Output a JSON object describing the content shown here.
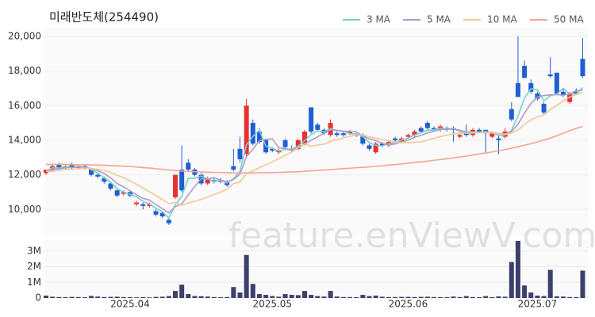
{
  "chart_data": {
    "type": "candlestick",
    "title": "미래반도체(254490)",
    "watermark": "feature.enViewV.com",
    "categories": [
      null,
      null,
      null,
      null,
      null,
      null,
      null,
      null,
      null,
      null,
      null,
      null,
      null,
      "2025.04",
      null,
      null,
      null,
      null,
      null,
      null,
      null,
      null,
      null,
      null,
      null,
      null,
      null,
      null,
      null,
      null,
      null,
      null,
      null,
      null,
      null,
      "2025.05",
      null,
      null,
      null,
      null,
      null,
      null,
      null,
      null,
      null,
      null,
      null,
      null,
      null,
      null,
      null,
      null,
      null,
      null,
      null,
      null,
      "2025.06",
      null,
      null,
      null,
      null,
      null,
      null,
      null,
      null,
      null,
      null,
      null,
      null,
      null,
      null,
      null,
      null,
      null,
      null,
      null,
      "2025.07",
      null,
      null,
      null,
      null,
      null,
      null,
      null
    ],
    "ohlc": [
      [
        12100,
        12300,
        12000,
        12300
      ],
      [
        12300,
        12600,
        12200,
        12500
      ],
      [
        12600,
        12700,
        12300,
        12400
      ],
      [
        12400,
        12600,
        12300,
        12500
      ],
      [
        12600,
        12700,
        12300,
        12400
      ],
      [
        12400,
        12600,
        12300,
        12500
      ],
      [
        12500,
        12600,
        12300,
        12400
      ],
      [
        12300,
        12400,
        11900,
        12000
      ],
      [
        12000,
        12100,
        11800,
        11900
      ],
      [
        11800,
        11900,
        11500,
        11600
      ],
      [
        11500,
        11600,
        11100,
        11200
      ],
      [
        11100,
        11200,
        10700,
        10800
      ],
      [
        10900,
        11100,
        10800,
        11000
      ],
      [
        11000,
        11100,
        10700,
        10800
      ],
      [
        10300,
        10500,
        10200,
        10400
      ],
      [
        10300,
        10400,
        10000,
        10200
      ],
      [
        10200,
        10400,
        10100,
        10300
      ],
      [
        9900,
        10000,
        9600,
        9700
      ],
      [
        9800,
        9900,
        9500,
        9600
      ],
      [
        9400,
        9500,
        9100,
        9200
      ],
      [
        10700,
        12000,
        10600,
        12000
      ],
      [
        12300,
        13700,
        11000,
        11100
      ],
      [
        12700,
        12900,
        12200,
        12300
      ],
      [
        12300,
        12400,
        11900,
        12000
      ],
      [
        12000,
        12100,
        11400,
        11500
      ],
      [
        11500,
        11900,
        11400,
        11800
      ],
      [
        11700,
        11800,
        11500,
        11600
      ],
      [
        11700,
        11800,
        11500,
        11600
      ],
      [
        11600,
        11700,
        11300,
        11400
      ],
      [
        12500,
        13500,
        12200,
        12300
      ],
      [
        13500,
        14200,
        12700,
        12900
      ],
      [
        13200,
        16400,
        13000,
        16000
      ],
      [
        15000,
        15200,
        13700,
        13800
      ],
      [
        14500,
        14700,
        13800,
        13900
      ],
      [
        14000,
        14100,
        13200,
        13300
      ],
      [
        13500,
        13600,
        13300,
        13400
      ],
      [
        13300,
        13500,
        13200,
        13400
      ],
      [
        14000,
        14100,
        13500,
        13600
      ],
      [
        13500,
        13700,
        13300,
        13400
      ],
      [
        13500,
        14100,
        13400,
        14000
      ],
      [
        13800,
        14600,
        13700,
        14500
      ],
      [
        15900,
        15900,
        14400,
        14500
      ],
      [
        14900,
        15000,
        14500,
        14600
      ],
      [
        14600,
        14700,
        14300,
        14400
      ],
      [
        14300,
        15200,
        14200,
        15000
      ],
      [
        14400,
        14500,
        14200,
        14300
      ],
      [
        14400,
        14500,
        14200,
        14300
      ],
      [
        14400,
        14600,
        14300,
        14500
      ],
      [
        14300,
        14400,
        14200,
        14300
      ],
      [
        14300,
        14400,
        13700,
        13800
      ],
      [
        13700,
        13800,
        13400,
        13500
      ],
      [
        13300,
        13900,
        13200,
        13800
      ],
      [
        13800,
        13900,
        13600,
        13700
      ],
      [
        13700,
        14000,
        13600,
        13900
      ],
      [
        14100,
        14200,
        13900,
        14000
      ],
      [
        13900,
        14200,
        13800,
        14100
      ],
      [
        14200,
        14400,
        14100,
        14300
      ],
      [
        14300,
        14600,
        14200,
        14500
      ],
      [
        14700,
        14800,
        14400,
        14500
      ],
      [
        15000,
        15100,
        14600,
        14700
      ],
      [
        14700,
        14800,
        14500,
        14600
      ],
      [
        14600,
        14900,
        14500,
        14800
      ],
      [
        14700,
        14800,
        14500,
        14600
      ],
      [
        14700,
        14800,
        13900,
        14600
      ],
      [
        14200,
        14400,
        14100,
        14300
      ],
      [
        14400,
        14900,
        14200,
        14300
      ],
      [
        14300,
        14700,
        14200,
        14600
      ],
      [
        14600,
        14700,
        14400,
        14500
      ],
      [
        14600,
        14600,
        13300,
        14400
      ],
      [
        14200,
        14500,
        14100,
        14400
      ],
      [
        14100,
        14300,
        13200,
        14000
      ],
      [
        14200,
        14700,
        14100,
        14500
      ],
      [
        15800,
        16200,
        15100,
        15200
      ],
      [
        17300,
        20000,
        16500,
        16500
      ],
      [
        18300,
        18600,
        17600,
        17600
      ],
      [
        17300,
        17500,
        16700,
        16800
      ],
      [
        16700,
        16800,
        16300,
        16400
      ],
      [
        16100,
        16200,
        15500,
        15600
      ],
      [
        17800,
        18800,
        17600,
        17700
      ],
      [
        17900,
        17900,
        16600,
        16700
      ],
      [
        16800,
        17000,
        16500,
        16600
      ],
      [
        16200,
        16800,
        16100,
        16700
      ],
      [
        16800,
        17000,
        16600,
        16700
      ],
      [
        18700,
        19900,
        17600,
        17700
      ]
    ],
    "up_color": "#e8312f",
    "down_color": "#1f5fd1",
    "series": [
      {
        "name": "3 MA",
        "color": "#74cfcf",
        "values": [
          12200,
          12400,
          12400,
          12470,
          12430,
          12470,
          12430,
          12300,
          12100,
          11830,
          11570,
          11200,
          11000,
          10870,
          10730,
          10470,
          10300,
          10070,
          9870,
          9500,
          10270,
          10770,
          11800,
          11800,
          11930,
          11770,
          11630,
          11670,
          11530,
          11770,
          12200,
          13730,
          14230,
          14570,
          13670,
          13530,
          13370,
          13470,
          13470,
          13670,
          13970,
          14330,
          14530,
          14500,
          14670,
          14570,
          14530,
          14370,
          14370,
          14200,
          13870,
          13700,
          13670,
          13800,
          13870,
          14000,
          14130,
          14300,
          14430,
          14570,
          14600,
          14700,
          14670,
          14670,
          14500,
          14400,
          14400,
          14470,
          14500,
          14430,
          14270,
          14300,
          14570,
          15400,
          16430,
          16970,
          16930,
          16270,
          16570,
          16670,
          17000,
          16670,
          16670,
          17030
        ]
      },
      {
        "name": "5 MA",
        "color": "#b497c9",
        "values": [
          12200,
          12300,
          12350,
          12400,
          12420,
          12460,
          12440,
          12360,
          12240,
          12080,
          11820,
          11500,
          11300,
          11080,
          10840,
          10640,
          10540,
          10280,
          10040,
          9800,
          10160,
          10320,
          10840,
          11320,
          11780,
          11740,
          11840,
          11700,
          11580,
          11740,
          12040,
          13040,
          13480,
          13980,
          14040,
          14080,
          13560,
          13520,
          13420,
          13560,
          13780,
          14000,
          14200,
          14400,
          14600,
          14560,
          14520,
          14500,
          14480,
          14240,
          14080,
          13980,
          13820,
          13740,
          13780,
          13900,
          14000,
          14160,
          14280,
          14420,
          14520,
          14620,
          14640,
          14660,
          14580,
          14480,
          14480,
          14460,
          14420,
          14440,
          14380,
          14360,
          14500,
          14920,
          15560,
          16120,
          16500,
          16580,
          16620,
          16640,
          16600,
          16660,
          16880,
          16880
        ]
      },
      {
        "name": "10 MA",
        "color": "#f1c894",
        "values": [
          12200,
          12200,
          12250,
          12300,
          12320,
          12350,
          12380,
          12360,
          12320,
          12250,
          12140,
          11970,
          11830,
          11650,
          11450,
          11240,
          11030,
          10800,
          10570,
          10330,
          10410,
          10240,
          10370,
          10470,
          10580,
          10720,
          10860,
          11000,
          11180,
          11490,
          11580,
          12070,
          12220,
          12410,
          12590,
          12750,
          12930,
          13130,
          13310,
          13570,
          13790,
          13640,
          13720,
          13770,
          13940,
          14030,
          14130,
          14220,
          14310,
          14290,
          14190,
          14120,
          14030,
          13980,
          13880,
          13860,
          13860,
          13880,
          13900,
          14000,
          14110,
          14210,
          14300,
          14370,
          14400,
          14420,
          14450,
          14450,
          14440,
          14420,
          14360,
          14350,
          14410,
          14600,
          14920,
          15170,
          15350,
          15450,
          15780,
          16010,
          16270,
          16490,
          16640,
          16760
        ]
      },
      {
        "name": "50 MA",
        "color": "#f4a591",
        "values": [
          12600,
          12600,
          12600,
          12600,
          12590,
          12580,
          12580,
          12570,
          12560,
          12550,
          12540,
          12520,
          12500,
          12480,
          12450,
          12420,
          12390,
          12350,
          12320,
          12280,
          12250,
          12220,
          12200,
          12180,
          12160,
          12150,
          12140,
          12130,
          12120,
          12110,
          12110,
          12110,
          12110,
          12120,
          12120,
          12130,
          12140,
          12150,
          12160,
          12180,
          12200,
          12230,
          12250,
          12280,
          12300,
          12330,
          12360,
          12380,
          12410,
          12430,
          12460,
          12490,
          12520,
          12560,
          12590,
          12630,
          12670,
          12710,
          12750,
          12790,
          12840,
          12880,
          12930,
          12980,
          13030,
          13080,
          13140,
          13200,
          13260,
          13320,
          13390,
          13460,
          13540,
          13620,
          13710,
          13800,
          13900,
          14010,
          14130,
          14260,
          14400,
          14550,
          14680,
          14800
        ]
      }
    ],
    "ylim": [
      8500,
      20500
    ],
    "yticks": [
      {
        "value": 10000,
        "label": "10,000"
      },
      {
        "value": 12000,
        "label": "12,000"
      },
      {
        "value": 14000,
        "label": "14,000"
      },
      {
        "value": 16000,
        "label": "16,000"
      },
      {
        "value": 18000,
        "label": "18,000"
      },
      {
        "value": 20000,
        "label": "20,000"
      }
    ],
    "grid": true,
    "legend": "top-right",
    "volume": {
      "color": "#3d3f6c",
      "ylim": [
        0,
        3700000
      ],
      "yticks": [
        0,
        {
          "value": 1000000,
          "label": "1M"
        },
        {
          "value": 2000000,
          "label": "2M"
        },
        {
          "value": 3000000,
          "label": "3M"
        }
      ],
      "values": [
        150000,
        80000,
        60000,
        50000,
        70000,
        60000,
        50000,
        130000,
        90000,
        60000,
        70000,
        80000,
        60000,
        50000,
        40000,
        50000,
        40000,
        70000,
        80000,
        120000,
        450000,
        850000,
        250000,
        120000,
        110000,
        90000,
        60000,
        50000,
        60000,
        700000,
        350000,
        2750000,
        900000,
        250000,
        200000,
        120000,
        80000,
        250000,
        200000,
        180000,
        450000,
        200000,
        120000,
        90000,
        450000,
        90000,
        60000,
        60000,
        50000,
        200000,
        120000,
        150000,
        80000,
        60000,
        60000,
        70000,
        70000,
        60000,
        70000,
        80000,
        60000,
        50000,
        50000,
        90000,
        60000,
        120000,
        60000,
        50000,
        120000,
        50000,
        100000,
        80000,
        2300000,
        3650000,
        800000,
        350000,
        150000,
        120000,
        1800000,
        100000,
        90000,
        60000,
        50000,
        1750000
      ]
    }
  }
}
